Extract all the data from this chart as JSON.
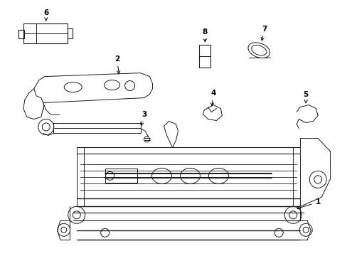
{
  "background_color": "#ffffff",
  "line_color": "#1a1a1a",
  "text_color": "#000000",
  "fig_width": 4.89,
  "fig_height": 3.6,
  "dpi": 100
}
